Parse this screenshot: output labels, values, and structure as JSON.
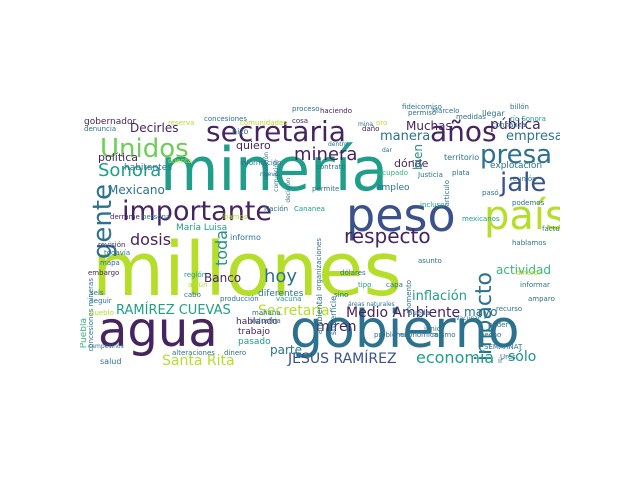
{
  "palette": {
    "dark_purple": "#46245f",
    "indigo": "#3b518b",
    "blue": "#31688e",
    "teal_blue": "#2c728e",
    "teal": "#21918c",
    "green_teal": "#1f9e89",
    "green": "#35b779",
    "light_green": "#6ece58",
    "yellow_green": "#b5de2b",
    "yellow": "#dde318"
  },
  "words": [
    {
      "text": "millones",
      "color": "yellow_green"
    },
    {
      "text": "minería",
      "color": "green_teal"
    },
    {
      "text": "gobierno",
      "color": "teal_blue"
    },
    {
      "text": "agua",
      "color": "dark_purple"
    },
    {
      "text": "peso",
      "color": "indigo"
    },
    {
      "text": "país",
      "color": "yellow_green"
    },
    {
      "text": "secretaria",
      "color": "dark_purple"
    },
    {
      "text": "importante",
      "color": "dark_purple"
    },
    {
      "text": "gente",
      "color": "teal_blue"
    },
    {
      "text": "Unidos",
      "color": "light_green"
    },
    {
      "text": "presa",
      "color": "teal_blue"
    },
    {
      "text": "años",
      "color": "dark_purple"
    },
    {
      "text": "jale",
      "color": "indigo"
    },
    {
      "text": "impacto",
      "color": "teal_blue"
    },
    {
      "text": "respecto",
      "color": "dark_purple"
    },
    {
      "text": "minera",
      "color": "dark_purple"
    },
    {
      "text": "Sonora",
      "color": "green_teal"
    },
    {
      "text": "hoy",
      "color": "teal_blue"
    },
    {
      "text": "dosis",
      "color": "dark_purple"
    },
    {
      "text": "toda",
      "color": "teal"
    },
    {
      "text": "economía",
      "color": "green_teal"
    },
    {
      "text": "JESÚS RAMÍREZ",
      "color": "indigo"
    },
    {
      "text": "Medio Ambiente",
      "color": "dark_purple"
    },
    {
      "text": "RAMÍREZ CUEVAS",
      "color": "green_teal"
    },
    {
      "text": "Secretaría",
      "color": "yellow_green"
    },
    {
      "text": "Santa Rita",
      "color": "yellow_green"
    },
    {
      "text": "miren",
      "color": "dark_purple"
    },
    {
      "text": "sólo",
      "color": "teal"
    },
    {
      "text": "inflación",
      "color": "green_teal"
    },
    {
      "text": "pública",
      "color": "dark_purple"
    },
    {
      "text": "empresa",
      "color": "teal_blue"
    },
    {
      "text": "manera",
      "color": "teal_blue"
    },
    {
      "text": "Muchas",
      "color": "dark_purple"
    },
    {
      "text": "Decirles",
      "color": "dark_purple"
    },
    {
      "text": "política",
      "color": "dark_purple"
    },
    {
      "text": "Mexicano",
      "color": "teal_blue"
    },
    {
      "text": "Banco",
      "color": "dark_purple"
    },
    {
      "text": "actividad",
      "color": "green"
    },
    {
      "text": "social",
      "color": "teal_blue"
    },
    {
      "text": "mayo",
      "color": "teal_blue"
    },
    {
      "text": "parte",
      "color": "teal_blue"
    },
    {
      "text": "quiero",
      "color": "dark_purple"
    },
    {
      "text": "bien",
      "color": "teal"
    },
    {
      "text": "dónde",
      "color": "dark_purple"
    },
    {
      "text": "empleo",
      "color": "teal_blue"
    },
    {
      "text": "explotación",
      "color": "teal_blue"
    },
    {
      "text": "territorio",
      "color": "teal_blue"
    },
    {
      "text": "hablando",
      "color": "dark_purple"
    },
    {
      "text": "trabajo",
      "color": "dark_purple"
    },
    {
      "text": "pasado",
      "color": "green_teal"
    },
    {
      "text": "diferentes",
      "color": "teal_blue"
    },
    {
      "text": "informo",
      "color": "teal_blue"
    },
    {
      "text": "María Luisa",
      "color": "green_teal"
    },
    {
      "text": "habitantes",
      "color": "teal_blue"
    },
    {
      "text": "gobernador",
      "color": "dark_purple"
    },
    {
      "text": "denuncia",
      "color": "teal_blue"
    },
    {
      "text": "concesiones",
      "color": "teal_blue"
    },
    {
      "text": "proceso",
      "color": "teal_blue"
    },
    {
      "text": "haciendo",
      "color": "dark_purple"
    },
    {
      "text": "permiso",
      "color": "teal_blue"
    },
    {
      "text": "billón",
      "color": "teal_blue"
    },
    {
      "text": "medidas",
      "color": "teal_blue"
    },
    {
      "text": "llegar",
      "color": "teal_blue"
    },
    {
      "text": "información",
      "color": "teal_blue"
    },
    {
      "text": "Justicia",
      "color": "teal_blue"
    },
    {
      "text": "plata",
      "color": "teal_blue"
    },
    {
      "text": "reunión",
      "color": "teal_blue"
    },
    {
      "text": "podemos",
      "color": "teal_blue"
    },
    {
      "text": "pasó",
      "color": "teal_blue"
    },
    {
      "text": "derrame",
      "color": "dark_purple"
    },
    {
      "text": "persona",
      "color": "teal_blue"
    },
    {
      "text": "íbamos",
      "color": "yellow_green"
    },
    {
      "text": "revisión",
      "color": "dark_purple"
    },
    {
      "text": "todavía",
      "color": "teal_blue"
    },
    {
      "text": "mapa",
      "color": "teal_blue"
    },
    {
      "text": "embargo",
      "color": "dark_purple"
    },
    {
      "text": "región",
      "color": "green_teal"
    },
    {
      "text": "algún",
      "color": "yellow_green"
    },
    {
      "text": "cabo",
      "color": "teal_blue"
    },
    {
      "text": "producción",
      "color": "teal_blue"
    },
    {
      "text": "vacuna",
      "color": "green_teal"
    },
    {
      "text": "concesiones mineras",
      "color": "teal_blue"
    },
    {
      "text": "pueblo",
      "color": "yellow_green"
    },
    {
      "text": "seguir",
      "color": "teal_blue"
    },
    {
      "text": "seis",
      "color": "teal_blue"
    },
    {
      "text": "Puebla",
      "color": "green"
    },
    {
      "text": "salud",
      "color": "teal_blue"
    },
    {
      "text": "alteraciones",
      "color": "teal_blue"
    },
    {
      "text": "dinero",
      "color": "teal_blue"
    },
    {
      "text": "industria",
      "color": "teal_blue"
    },
    {
      "text": "mañana",
      "color": "teal_blue"
    },
    {
      "text": "ambiental",
      "color": "teal_blue"
    },
    {
      "text": "superficie",
      "color": "teal_blue"
    },
    {
      "text": "dólares",
      "color": "teal_blue"
    },
    {
      "text": "momento",
      "color": "teal_blue"
    },
    {
      "text": "asunto",
      "color": "teal_blue"
    },
    {
      "text": "junio",
      "color": "teal_blue"
    },
    {
      "text": "recurso",
      "color": "teal_blue"
    },
    {
      "text": "informar",
      "color": "teal_blue"
    },
    {
      "text": "amparo",
      "color": "teal_blue"
    },
    {
      "text": "problema",
      "color": "teal_blue"
    },
    {
      "text": "económica",
      "color": "teal_blue"
    },
    {
      "text": "mismo",
      "color": "teal_blue"
    },
    {
      "text": "hecho",
      "color": "teal_blue"
    },
    {
      "text": "Ures",
      "color": "teal_blue"
    },
    {
      "text": "permite",
      "color": "teal_blue"
    },
    {
      "text": "hizo",
      "color": "teal_blue"
    },
    {
      "text": "cosa",
      "color": "dark_purple"
    },
    {
      "text": "fideicomiso",
      "color": "teal_blue"
    },
    {
      "text": "Marcelo",
      "color": "teal_blue"
    },
    {
      "text": "río Sonora",
      "color": "green_teal"
    },
    {
      "text": "confianza",
      "color": "teal_blue"
    },
    {
      "text": "comunidades",
      "color": "yellow_green"
    },
    {
      "text": "cuenta",
      "color": "yellow_green"
    },
    {
      "text": "reserva",
      "color": "yellow_green"
    },
    {
      "text": "daño",
      "color": "dark_purple"
    },
    {
      "text": "incluso",
      "color": "green_teal"
    },
    {
      "text": "mexicanos",
      "color": "green_teal"
    },
    {
      "text": "dinerol",
      "color": "yellow_green"
    },
    {
      "text": "pueda",
      "color": "teal_blue"
    },
    {
      "text": "factura",
      "color": "teal_blue"
    },
    {
      "text": "hablamos",
      "color": "teal_blue"
    },
    {
      "text": "Nación",
      "color": "teal_blue"
    },
    {
      "text": "Cananea",
      "color": "green_teal"
    },
    {
      "text": "contrato",
      "color": "teal_blue"
    },
    {
      "text": "sino",
      "color": "teal_blue"
    },
    {
      "text": "tipo",
      "color": "green_teal"
    },
    {
      "text": "capa",
      "color": "teal_blue"
    },
    {
      "text": "SEMARNAT",
      "color": "teal_blue"
    },
    {
      "text": "poder",
      "color": "teal_blue"
    },
    {
      "text": "áreas naturales",
      "color": "teal_blue"
    },
    {
      "text": "campesinos",
      "color": "teal_blue"
    },
    {
      "text": "organizaciones",
      "color": "teal_blue"
    },
    {
      "text": "ocupado",
      "color": "green"
    },
    {
      "text": "artículo",
      "color": "teal_blue"
    },
    {
      "text": "dentro",
      "color": "teal_blue"
    },
    {
      "text": "nuevo",
      "color": "teal_blue"
    },
    {
      "text": "decisión",
      "color": "teal_blue"
    },
    {
      "text": "ir",
      "color": "teal_blue"
    },
    {
      "text": "rendición",
      "color": "teal_blue"
    },
    {
      "text": "corrupción",
      "color": "teal_blue"
    },
    {
      "text": "vacunar",
      "color": "teal_blue"
    },
    {
      "text": "dar",
      "color": "teal_blue"
    },
    {
      "text": "mina",
      "color": "teal_blue"
    },
    {
      "text": "oro",
      "color": "yellow_green"
    }
  ]
}
